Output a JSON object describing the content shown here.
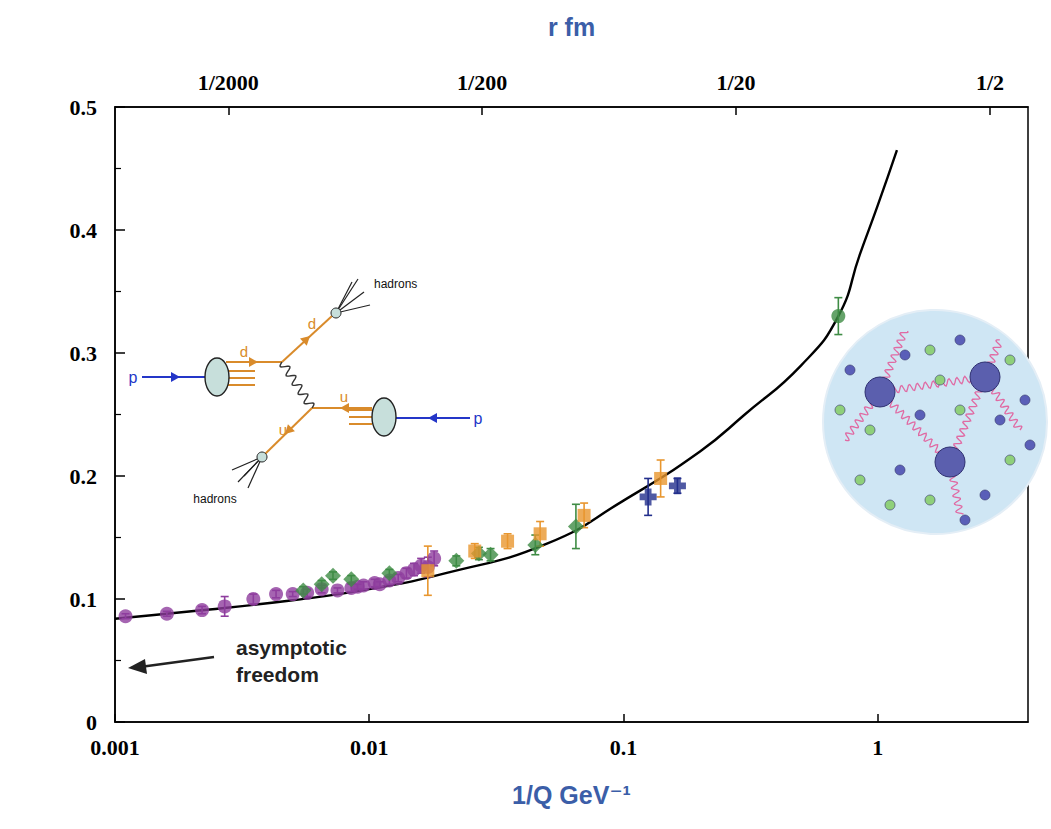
{
  "chart_data": {
    "type": "scatter",
    "xlabel": "1/Q GeV⁻¹",
    "log": "x",
    "xlim": [
      0.001,
      3.9
    ],
    "xticks": [
      0.001,
      0.01,
      0.1,
      1
    ],
    "ylim": [
      0,
      0.5
    ],
    "yticks": [
      0,
      0.1,
      0.2,
      0.3,
      0.4,
      0.5
    ],
    "grid": false,
    "tick_labels": true,
    "top_axis": {
      "label": "r fm",
      "lim": [
        0.000179,
        0.706
      ],
      "ticks": [
        {
          "value": 0.0005,
          "label": "1/2000"
        },
        {
          "value": 0.005,
          "label": "1/200"
        },
        {
          "value": 0.05,
          "label": "1/20"
        },
        {
          "value": 0.5,
          "label": "1/2"
        }
      ]
    },
    "series": [
      {
        "type": "line",
        "color": "#000000",
        "line_style": "solid",
        "x": [
          0.001,
          0.002,
          0.005,
          0.01,
          0.02,
          0.05,
          0.1,
          0.2,
          0.3,
          0.5,
          0.7,
          0.85,
          1.0,
          1.19
        ],
        "values": [
          0.084,
          0.09,
          0.099,
          0.108,
          0.121,
          0.145,
          0.18,
          0.22,
          0.25,
          0.29,
          0.33,
          0.38,
          0.42,
          0.465
        ]
      },
      {
        "type": "scatter",
        "marker": "circle",
        "color": "#8e3d9e",
        "x": [
          0.0011,
          0.0016,
          0.0022,
          0.0027,
          0.0035,
          0.0043,
          0.005,
          0.0057,
          0.0065,
          0.0075,
          0.0085,
          0.009,
          0.0095,
          0.0105,
          0.011,
          0.012,
          0.013,
          0.014,
          0.015,
          0.016,
          0.017,
          0.018
        ],
        "values": [
          0.086,
          0.088,
          0.091,
          0.094,
          0.1,
          0.104,
          0.104,
          0.105,
          0.108,
          0.107,
          0.109,
          0.11,
          0.111,
          0.113,
          0.112,
          0.115,
          0.117,
          0.121,
          0.124,
          0.127,
          0.126,
          0.133
        ],
        "errors": [
          0.002,
          0.002,
          0.003,
          0.008,
          0.004,
          0.003,
          0.002,
          0.003,
          0.003,
          0.002,
          0.003,
          0.002,
          0.003,
          0.003,
          0.002,
          0.003,
          0.003,
          0.004,
          0.005,
          0.006,
          0.008,
          0.006
        ]
      },
      {
        "type": "scatter",
        "marker": "diamond",
        "color": "#3f8c45",
        "x": [
          0.0055,
          0.0065,
          0.0072,
          0.0085,
          0.012,
          0.022,
          0.027,
          0.03,
          0.045,
          0.065
        ],
        "values": [
          0.107,
          0.112,
          0.119,
          0.116,
          0.121,
          0.131,
          0.137,
          0.136,
          0.144,
          0.159
        ],
        "errors": [
          0.003,
          0.003,
          0.003,
          0.003,
          0.003,
          0.004,
          0.005,
          0.005,
          0.008,
          0.018
        ]
      },
      {
        "type": "scatter",
        "marker": "square",
        "color": "#e8962e",
        "x": [
          0.017,
          0.026,
          0.035,
          0.047,
          0.07,
          0.14
        ],
        "values": [
          0.123,
          0.139,
          0.147,
          0.153,
          0.168,
          0.198
        ],
        "errors": [
          0.02,
          0.006,
          0.006,
          0.01,
          0.01,
          0.015
        ]
      },
      {
        "type": "scatter",
        "marker": "cross",
        "color": "#232f8c",
        "x": [
          0.125,
          0.163
        ],
        "values": [
          0.183,
          0.192
        ],
        "errors": [
          0.015,
          0.006
        ]
      },
      {
        "type": "scatter",
        "marker": "circle",
        "color": "#3f8c45",
        "x": [
          0.7
        ],
        "values": [
          0.33
        ],
        "errors": [
          0.015
        ]
      }
    ],
    "annotations": [
      {
        "text": "asymptotic\nfreedom"
      }
    ],
    "inset": {
      "beams": [
        "p",
        "p"
      ],
      "quarks": [
        "d",
        "d",
        "u",
        "u"
      ],
      "jets": [
        "hadrons",
        "hadrons"
      ]
    }
  }
}
